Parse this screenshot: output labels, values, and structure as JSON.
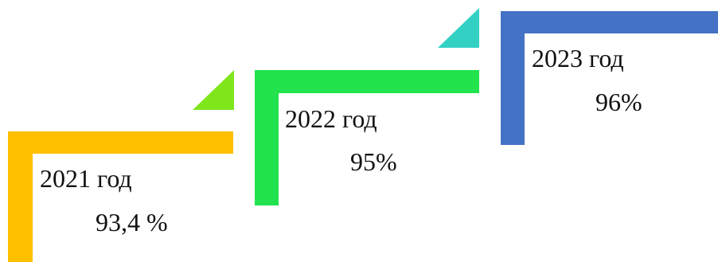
{
  "colors": {
    "step1": "#FFC000",
    "step2": "#22E34E",
    "step3": "#4472C4",
    "tri1": "#7FE61C",
    "tri2": "#33D1C4",
    "text": "#111111"
  },
  "steps": [
    {
      "year": "2021 год",
      "value": "93,4 %"
    },
    {
      "year": "2022 год",
      "value": "95%"
    },
    {
      "year": "2023 год",
      "value": "96%"
    }
  ]
}
